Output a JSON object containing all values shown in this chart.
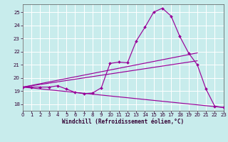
{
  "xlabel": "Windchill (Refroidissement éolien,°C)",
  "background_color": "#c8ecec",
  "grid_color": "#ffffff",
  "line_color": "#990099",
  "xlim": [
    0,
    23
  ],
  "ylim": [
    17.5,
    25.6
  ],
  "yticks": [
    18,
    19,
    20,
    21,
    22,
    23,
    24,
    25
  ],
  "xticks": [
    0,
    1,
    2,
    3,
    4,
    5,
    6,
    7,
    8,
    9,
    10,
    11,
    12,
    13,
    14,
    15,
    16,
    17,
    18,
    19,
    20,
    21,
    22,
    23
  ],
  "main_x": [
    0,
    1,
    2,
    3,
    4,
    5,
    6,
    7,
    8,
    9,
    10,
    11,
    12,
    13,
    14,
    15,
    16,
    17,
    18,
    19,
    20,
    21,
    22,
    23
  ],
  "main_y": [
    19.3,
    19.3,
    19.3,
    19.3,
    19.4,
    19.15,
    18.9,
    18.8,
    18.85,
    19.25,
    21.1,
    21.2,
    21.15,
    22.8,
    23.85,
    25.0,
    25.3,
    24.7,
    23.15,
    21.9,
    21.0,
    19.15,
    17.85,
    17.75
  ],
  "line1_x": [
    0,
    20
  ],
  "line1_y": [
    19.3,
    21.9
  ],
  "line2_x": [
    0,
    20
  ],
  "line2_y": [
    19.3,
    21.3
  ],
  "line3_x": [
    0,
    23
  ],
  "line3_y": [
    19.3,
    17.75
  ]
}
